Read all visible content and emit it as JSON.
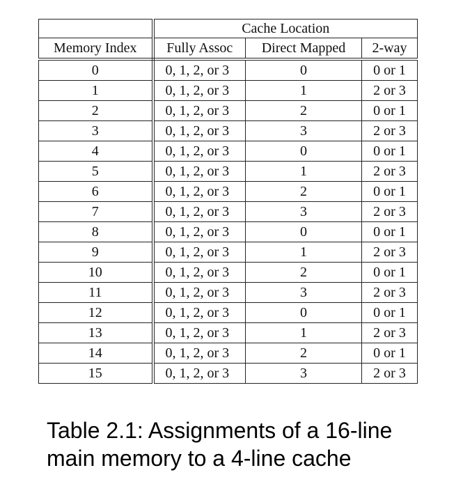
{
  "table": {
    "group_header": "Cache Location",
    "columns": {
      "memory_index": "Memory Index",
      "fully_assoc": "Fully Assoc",
      "direct_mapped": "Direct Mapped",
      "two_way": "2-way"
    },
    "rows": [
      {
        "index": "0",
        "fully_assoc": "0, 1, 2, or 3",
        "direct_mapped": "0",
        "two_way": "0 or 1"
      },
      {
        "index": "1",
        "fully_assoc": "0, 1, 2, or 3",
        "direct_mapped": "1",
        "two_way": "2 or 3"
      },
      {
        "index": "2",
        "fully_assoc": "0, 1, 2, or 3",
        "direct_mapped": "2",
        "two_way": "0 or 1"
      },
      {
        "index": "3",
        "fully_assoc": "0, 1, 2, or 3",
        "direct_mapped": "3",
        "two_way": "2 or 3"
      },
      {
        "index": "4",
        "fully_assoc": "0, 1, 2, or 3",
        "direct_mapped": "0",
        "two_way": "0 or 1"
      },
      {
        "index": "5",
        "fully_assoc": "0, 1, 2, or 3",
        "direct_mapped": "1",
        "two_way": "2 or 3"
      },
      {
        "index": "6",
        "fully_assoc": "0, 1, 2, or 3",
        "direct_mapped": "2",
        "two_way": "0 or 1"
      },
      {
        "index": "7",
        "fully_assoc": "0, 1, 2, or 3",
        "direct_mapped": "3",
        "two_way": "2 or 3"
      },
      {
        "index": "8",
        "fully_assoc": "0, 1, 2, or 3",
        "direct_mapped": "0",
        "two_way": "0 or 1"
      },
      {
        "index": "9",
        "fully_assoc": "0, 1, 2, or 3",
        "direct_mapped": "1",
        "two_way": "2 or 3"
      },
      {
        "index": "10",
        "fully_assoc": "0, 1, 2, or 3",
        "direct_mapped": "2",
        "two_way": "0 or 1"
      },
      {
        "index": "11",
        "fully_assoc": "0, 1, 2, or 3",
        "direct_mapped": "3",
        "two_way": "2 or 3"
      },
      {
        "index": "12",
        "fully_assoc": "0, 1, 2, or 3",
        "direct_mapped": "0",
        "two_way": "0 or 1"
      },
      {
        "index": "13",
        "fully_assoc": "0, 1, 2, or 3",
        "direct_mapped": "1",
        "two_way": "2 or 3"
      },
      {
        "index": "14",
        "fully_assoc": "0, 1, 2, or 3",
        "direct_mapped": "2",
        "two_way": "0 or 1"
      },
      {
        "index": "15",
        "fully_assoc": "0, 1, 2, or 3",
        "direct_mapped": "3",
        "two_way": "2 or 3"
      }
    ]
  },
  "caption": "Table 2.1: Assignments of a 16-line main memory to a 4-line cache"
}
